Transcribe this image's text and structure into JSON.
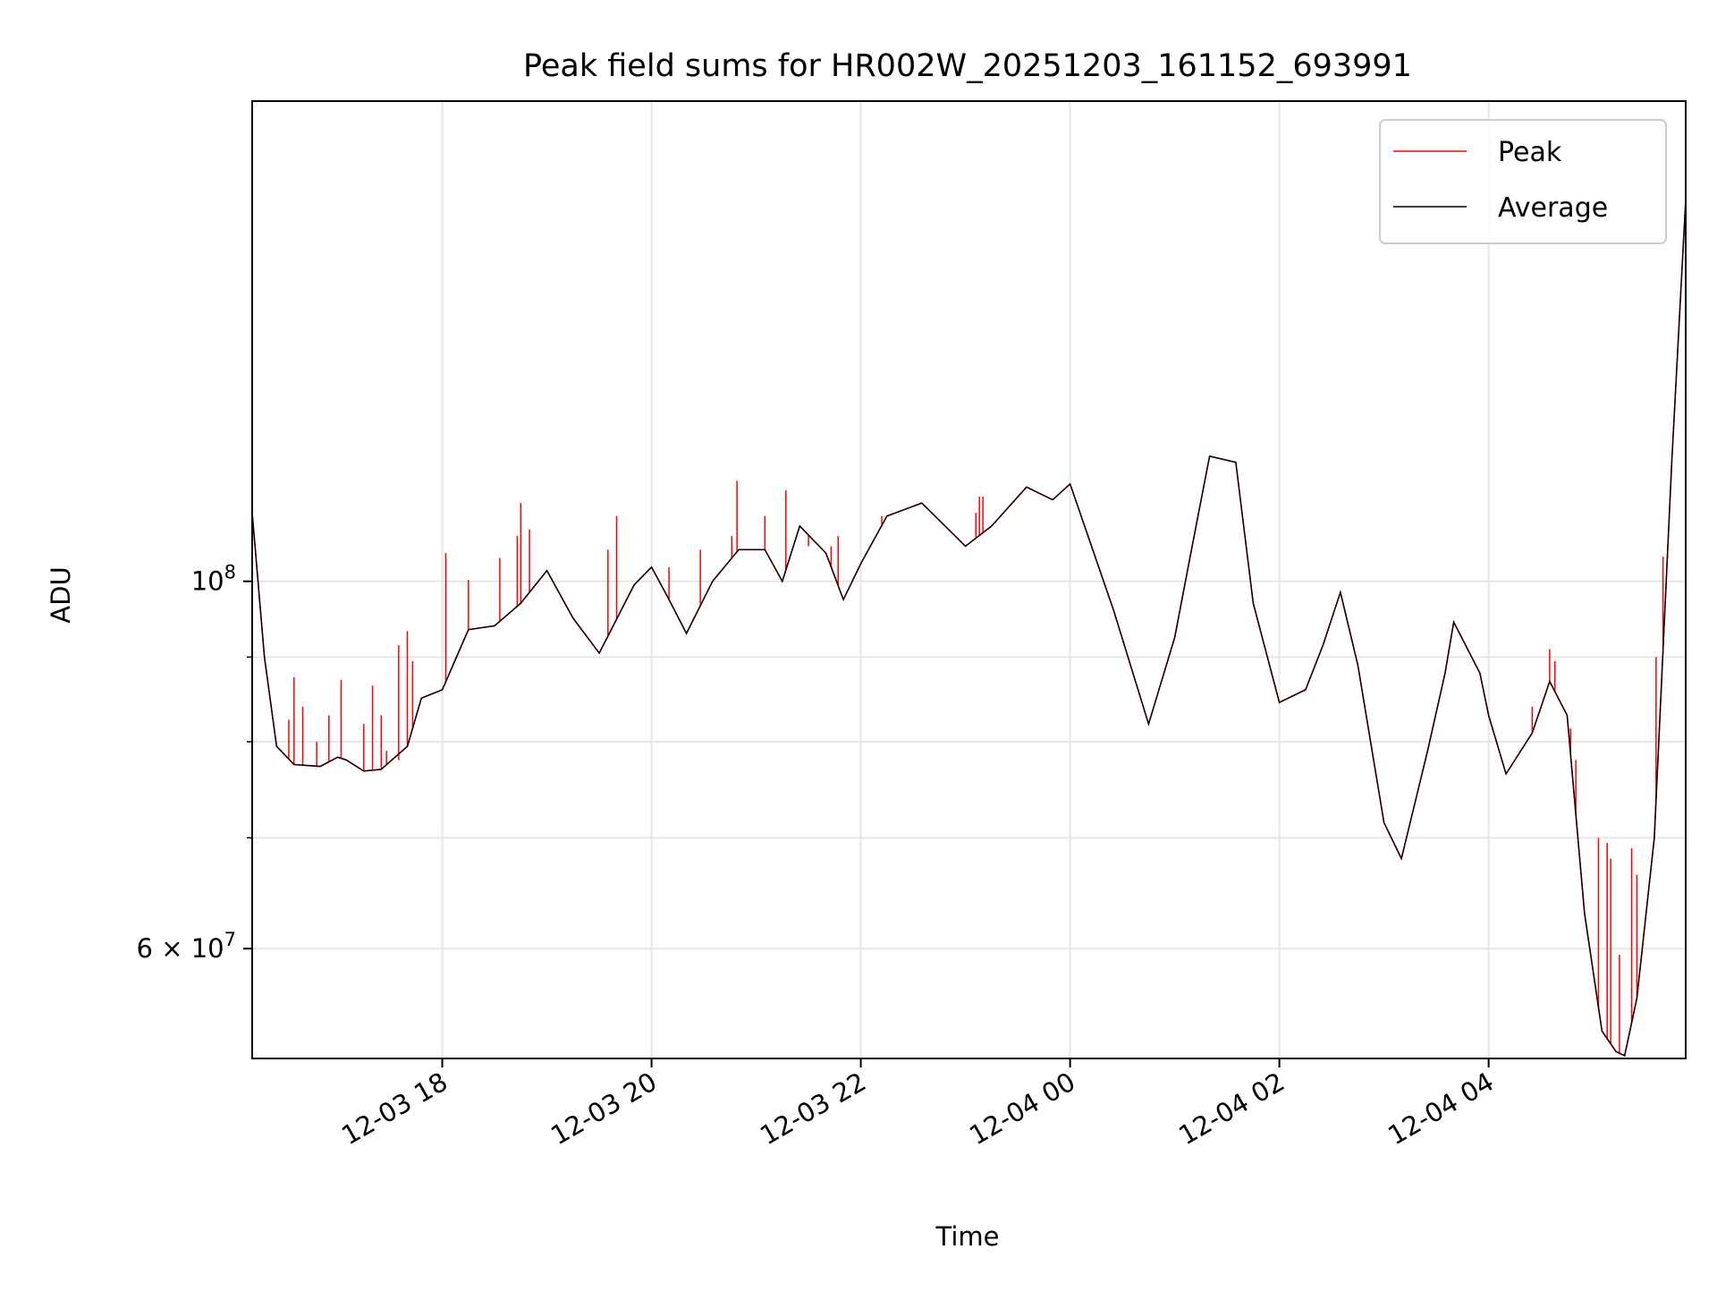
{
  "chart_data": {
    "type": "line",
    "title": "Peak field sums for HR002W_20251203_161152_693991",
    "xlabel": "Time",
    "ylabel": "ADU",
    "y_scale": "log",
    "grid": true,
    "legend_placement": "upper-right",
    "xlim": [
      "2025-12-03 16:11",
      "2025-12-04 05:53"
    ],
    "ylim": [
      51500000,
      195000000
    ],
    "x_ticks": [
      {
        "value": "2025-12-03 18:00",
        "label": "12-03 18"
      },
      {
        "value": "2025-12-03 20:00",
        "label": "12-03 20"
      },
      {
        "value": "2025-12-03 22:00",
        "label": "12-03 22"
      },
      {
        "value": "2025-12-04 00:00",
        "label": "12-04 00"
      },
      {
        "value": "2025-12-04 02:00",
        "label": "12-04 02"
      },
      {
        "value": "2025-12-04 04:00",
        "label": "12-04 04"
      }
    ],
    "y_major_ticks": [
      {
        "value": 100000000,
        "label_base": "10",
        "label_exp": "8"
      },
      {
        "value": 60000000,
        "label_base": "6 × 10",
        "label_exp": "7"
      }
    ],
    "y_minor_gridlines": [
      70000000,
      80000000,
      90000000
    ],
    "series": [
      {
        "name": "Peak",
        "color": "#ff0000",
        "spikes": [
          [
            "2025-12-03 16:32",
            82500000
          ],
          [
            "2025-12-03 16:35",
            87500000
          ],
          [
            "2025-12-03 16:40",
            84000000
          ],
          [
            "2025-12-03 16:48",
            80000000
          ],
          [
            "2025-12-03 16:55",
            83000000
          ],
          [
            "2025-12-03 17:02",
            87200000
          ],
          [
            "2025-12-03 17:15",
            82000000
          ],
          [
            "2025-12-03 17:20",
            86500000
          ],
          [
            "2025-12-03 17:25",
            83000000
          ],
          [
            "2025-12-03 17:28",
            79000000
          ],
          [
            "2025-12-03 17:35",
            78000000
          ],
          [
            "2025-12-03 17:35",
            91500000
          ],
          [
            "2025-12-03 17:40",
            93300000
          ],
          [
            "2025-12-03 17:43",
            89500000
          ],
          [
            "2025-12-03 18:02",
            104000000
          ],
          [
            "2025-12-03 18:15",
            100200000
          ],
          [
            "2025-12-03 18:33",
            103300000
          ],
          [
            "2025-12-03 18:43",
            106500000
          ],
          [
            "2025-12-03 18:45",
            111500000
          ],
          [
            "2025-12-03 18:50",
            107500000
          ],
          [
            "2025-12-03 19:35",
            104500000
          ],
          [
            "2025-12-03 19:40",
            109500000
          ],
          [
            "2025-12-03 20:10",
            102000000
          ],
          [
            "2025-12-03 20:28",
            104500000
          ],
          [
            "2025-12-03 20:46",
            106500000
          ],
          [
            "2025-12-03 20:49",
            115000000
          ],
          [
            "2025-12-03 21:05",
            109500000
          ],
          [
            "2025-12-03 21:17",
            113500000
          ],
          [
            "2025-12-03 21:30",
            105000000
          ],
          [
            "2025-12-03 21:43",
            105000000
          ],
          [
            "2025-12-03 21:47",
            106500000
          ],
          [
            "2025-12-03 22:12",
            109500000
          ],
          [
            "2025-12-03 23:06",
            110000000
          ],
          [
            "2025-12-03 23:08",
            112500000
          ],
          [
            "2025-12-03 23:10",
            112500000
          ],
          [
            "2025-12-04 04:25",
            84000000
          ],
          [
            "2025-12-04 04:35",
            91000000
          ],
          [
            "2025-12-04 04:38",
            89500000
          ],
          [
            "2025-12-04 04:47",
            81500000
          ],
          [
            "2025-12-04 04:50",
            78000000
          ],
          [
            "2025-12-04 05:03",
            70000000
          ],
          [
            "2025-12-04 05:08",
            69500000
          ],
          [
            "2025-12-04 05:10",
            68000000
          ],
          [
            "2025-12-04 05:15",
            59500000
          ],
          [
            "2025-12-04 05:22",
            69000000
          ],
          [
            "2025-12-04 05:25",
            66500000
          ],
          [
            "2025-12-04 05:36",
            90000000
          ],
          [
            "2025-12-04 05:40",
            103500000
          ]
        ]
      },
      {
        "name": "Average",
        "color": "#000000",
        "points": [
          [
            "2025-12-03 16:11",
            110000000
          ],
          [
            "2025-12-03 16:18",
            90000000
          ],
          [
            "2025-12-03 16:25",
            79500000
          ],
          [
            "2025-12-03 16:35",
            77500000
          ],
          [
            "2025-12-03 16:50",
            77300000
          ],
          [
            "2025-12-03 17:00",
            78300000
          ],
          [
            "2025-12-03 17:05",
            78000000
          ],
          [
            "2025-12-03 17:15",
            76800000
          ],
          [
            "2025-12-03 17:25",
            77000000
          ],
          [
            "2025-12-03 17:40",
            79500000
          ],
          [
            "2025-12-03 17:48",
            85000000
          ],
          [
            "2025-12-03 18:00",
            86000000
          ],
          [
            "2025-12-03 18:15",
            93500000
          ],
          [
            "2025-12-03 18:30",
            94000000
          ],
          [
            "2025-12-03 18:45",
            97000000
          ],
          [
            "2025-12-03 19:00",
            101500000
          ],
          [
            "2025-12-03 19:15",
            95000000
          ],
          [
            "2025-12-03 19:30",
            90500000
          ],
          [
            "2025-12-03 19:50",
            99500000
          ],
          [
            "2025-12-03 20:00",
            102000000
          ],
          [
            "2025-12-03 20:10",
            97500000
          ],
          [
            "2025-12-03 20:20",
            93000000
          ],
          [
            "2025-12-03 20:35",
            100000000
          ],
          [
            "2025-12-03 20:50",
            104500000
          ],
          [
            "2025-12-03 21:05",
            104500000
          ],
          [
            "2025-12-03 21:15",
            100000000
          ],
          [
            "2025-12-03 21:25",
            108000000
          ],
          [
            "2025-12-03 21:40",
            104000000
          ],
          [
            "2025-12-03 21:50",
            97500000
          ],
          [
            "2025-12-03 22:00",
            102500000
          ],
          [
            "2025-12-03 22:15",
            109500000
          ],
          [
            "2025-12-03 22:35",
            111500000
          ],
          [
            "2025-12-03 23:00",
            105000000
          ],
          [
            "2025-12-03 23:15",
            108000000
          ],
          [
            "2025-12-03 23:35",
            114000000
          ],
          [
            "2025-12-03 23:50",
            112000000
          ],
          [
            "2025-12-04 00:00",
            114500000
          ],
          [
            "2025-12-04 00:25",
            96000000
          ],
          [
            "2025-12-04 00:45",
            82000000
          ],
          [
            "2025-12-04 01:00",
            92500000
          ],
          [
            "2025-12-04 01:10",
            105000000
          ],
          [
            "2025-12-04 01:20",
            119000000
          ],
          [
            "2025-12-04 01:35",
            118000000
          ],
          [
            "2025-12-04 01:45",
            97000000
          ],
          [
            "2025-12-04 02:00",
            84500000
          ],
          [
            "2025-12-04 02:15",
            86000000
          ],
          [
            "2025-12-04 02:25",
            91500000
          ],
          [
            "2025-12-04 02:35",
            98500000
          ],
          [
            "2025-12-04 02:45",
            89000000
          ],
          [
            "2025-12-04 03:00",
            71500000
          ],
          [
            "2025-12-04 03:10",
            68000000
          ],
          [
            "2025-12-04 03:25",
            79000000
          ],
          [
            "2025-12-04 03:35",
            88000000
          ],
          [
            "2025-12-04 03:40",
            94500000
          ],
          [
            "2025-12-04 03:55",
            88000000
          ],
          [
            "2025-12-04 04:00",
            83000000
          ],
          [
            "2025-12-04 04:10",
            76500000
          ],
          [
            "2025-12-04 04:25",
            81000000
          ],
          [
            "2025-12-04 04:35",
            87000000
          ],
          [
            "2025-12-04 04:45",
            83000000
          ],
          [
            "2025-12-04 04:55",
            63000000
          ],
          [
            "2025-12-04 05:05",
            53500000
          ],
          [
            "2025-12-04 05:13",
            52000000
          ],
          [
            "2025-12-04 05:18",
            51700000
          ],
          [
            "2025-12-04 05:25",
            56000000
          ],
          [
            "2025-12-04 05:35",
            70000000
          ],
          [
            "2025-12-04 05:45",
            118000000
          ],
          [
            "2025-12-04 05:53",
            170000000
          ]
        ]
      }
    ]
  }
}
